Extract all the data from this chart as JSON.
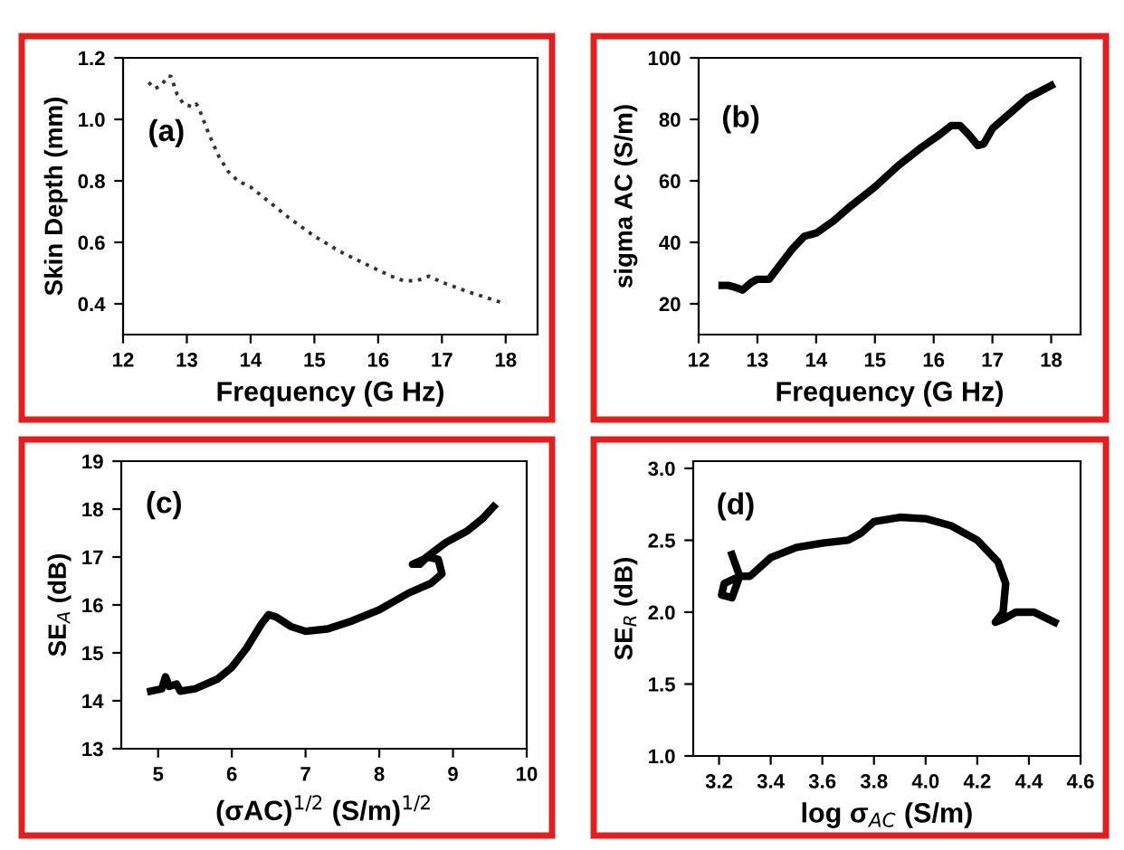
{
  "chart_data": [
    {
      "type": "line",
      "xlabel": "Frequency (G Hz)",
      "ylabel": "Skin Depth (mm)",
      "annotations": [
        "(a)"
      ],
      "color": "#333333",
      "line_style": "dotted",
      "x": [
        12.4,
        12.5,
        12.6,
        12.7,
        12.75,
        12.85,
        12.95,
        13.1,
        13.15,
        13.2,
        13.35,
        13.5,
        13.65,
        13.8,
        14.0,
        14.3,
        14.6,
        15.0,
        15.4,
        15.8,
        16.2,
        16.4,
        16.6,
        16.8,
        17.0,
        17.4,
        17.7,
        18.0
      ],
      "values": [
        1.12,
        1.1,
        1.11,
        1.14,
        1.14,
        1.08,
        1.05,
        1.04,
        1.05,
        1.03,
        0.95,
        0.88,
        0.83,
        0.8,
        0.78,
        0.73,
        0.68,
        0.62,
        0.57,
        0.53,
        0.49,
        0.475,
        0.475,
        0.49,
        0.47,
        0.44,
        0.42,
        0.4
      ],
      "xlim": [
        12,
        18.5
      ],
      "xticks": [
        12,
        13,
        14,
        15,
        16,
        17,
        18
      ],
      "ylim": [
        0.3,
        1.2
      ],
      "yticks": [
        0.4,
        0.6,
        0.8,
        {
          "value": 1,
          "label": "1.0"
        },
        1.2
      ]
    },
    {
      "type": "line",
      "xlabel": "Frequency (G Hz)",
      "ylabel": "sigma AC (S/m)",
      "annotations": [
        "(b)"
      ],
      "color": "#000000",
      "line_style": "solid",
      "x": [
        12.4,
        12.5,
        12.6,
        12.75,
        12.9,
        13.0,
        13.2,
        13.4,
        13.6,
        13.8,
        14.0,
        14.3,
        14.6,
        15.0,
        15.4,
        15.8,
        16.1,
        16.3,
        16.45,
        16.6,
        16.75,
        16.85,
        17.0,
        17.3,
        17.6,
        18.0
      ],
      "values": [
        26,
        26,
        25.5,
        24.5,
        27,
        28,
        28,
        33,
        38,
        42,
        43,
        47,
        52,
        58,
        65,
        71,
        75,
        78,
        78,
        75,
        71.5,
        72,
        77,
        82,
        87,
        91
      ],
      "xlim": [
        12,
        18.5
      ],
      "xticks": [
        12,
        13,
        14,
        15,
        16,
        17,
        18
      ],
      "ylim": [
        10,
        100
      ],
      "yticks": [
        20,
        40,
        60,
        80,
        100
      ]
    },
    {
      "type": "line",
      "xlabel": "(σAC)$^{1/2}$ (S/m)$^{1/2}$",
      "ylabel": "SE$_{A}$ (dB)",
      "annotations": [
        "(c)"
      ],
      "color": "#000000",
      "line_style": "solid",
      "x": [
        4.9,
        5.05,
        5.1,
        5.15,
        5.25,
        5.3,
        5.5,
        5.8,
        6.0,
        6.2,
        6.4,
        6.5,
        6.6,
        6.8,
        7.0,
        7.3,
        7.6,
        8.0,
        8.4,
        8.7,
        8.85,
        8.8,
        8.65,
        8.55,
        8.45,
        8.6,
        8.9,
        9.2,
        9.4,
        9.55
      ],
      "values": [
        14.2,
        14.25,
        14.5,
        14.3,
        14.35,
        14.2,
        14.25,
        14.45,
        14.7,
        15.1,
        15.6,
        15.8,
        15.75,
        15.55,
        15.45,
        15.5,
        15.65,
        15.9,
        16.25,
        16.45,
        16.65,
        16.95,
        17.0,
        16.85,
        16.85,
        16.95,
        17.3,
        17.55,
        17.8,
        18.05
      ],
      "xlim": [
        4.5,
        10
      ],
      "xticks": [
        5,
        6,
        7,
        8,
        9,
        10
      ],
      "ylim": [
        13,
        19
      ],
      "yticks": [
        13,
        14,
        15,
        16,
        17,
        18,
        19
      ]
    },
    {
      "type": "line",
      "xlabel": "log σ$_{AC}$ (S/m)",
      "ylabel": "SE$_{R}$ (dB)",
      "annotations": [
        "(d)"
      ],
      "color": "#000000",
      "line_style": "solid",
      "x": [
        3.25,
        3.28,
        3.25,
        3.21,
        3.22,
        3.28,
        3.32,
        3.4,
        3.5,
        3.6,
        3.7,
        3.75,
        3.8,
        3.9,
        4.0,
        4.1,
        4.2,
        4.28,
        4.31,
        4.3,
        4.27,
        4.3,
        4.35,
        4.42,
        4.5
      ],
      "values": [
        2.4,
        2.25,
        2.1,
        2.12,
        2.2,
        2.25,
        2.25,
        2.38,
        2.45,
        2.48,
        2.5,
        2.55,
        2.63,
        2.66,
        2.65,
        2.6,
        2.5,
        2.35,
        2.2,
        2.0,
        1.93,
        1.95,
        2.0,
        2.0,
        1.93
      ],
      "xlim": [
        3.1,
        4.6
      ],
      "xticks": [
        3.2,
        3.4,
        3.6,
        3.8,
        {
          "value": 4,
          "label": "4.0"
        },
        4.2,
        4.4,
        4.6
      ],
      "ylim": [
        1.0,
        3.05
      ],
      "yticks": [
        {
          "value": 1,
          "label": "1.0"
        },
        1.5,
        {
          "value": 2,
          "label": "2.0"
        },
        2.5,
        {
          "value": 3,
          "label": "3.0"
        }
      ]
    }
  ]
}
